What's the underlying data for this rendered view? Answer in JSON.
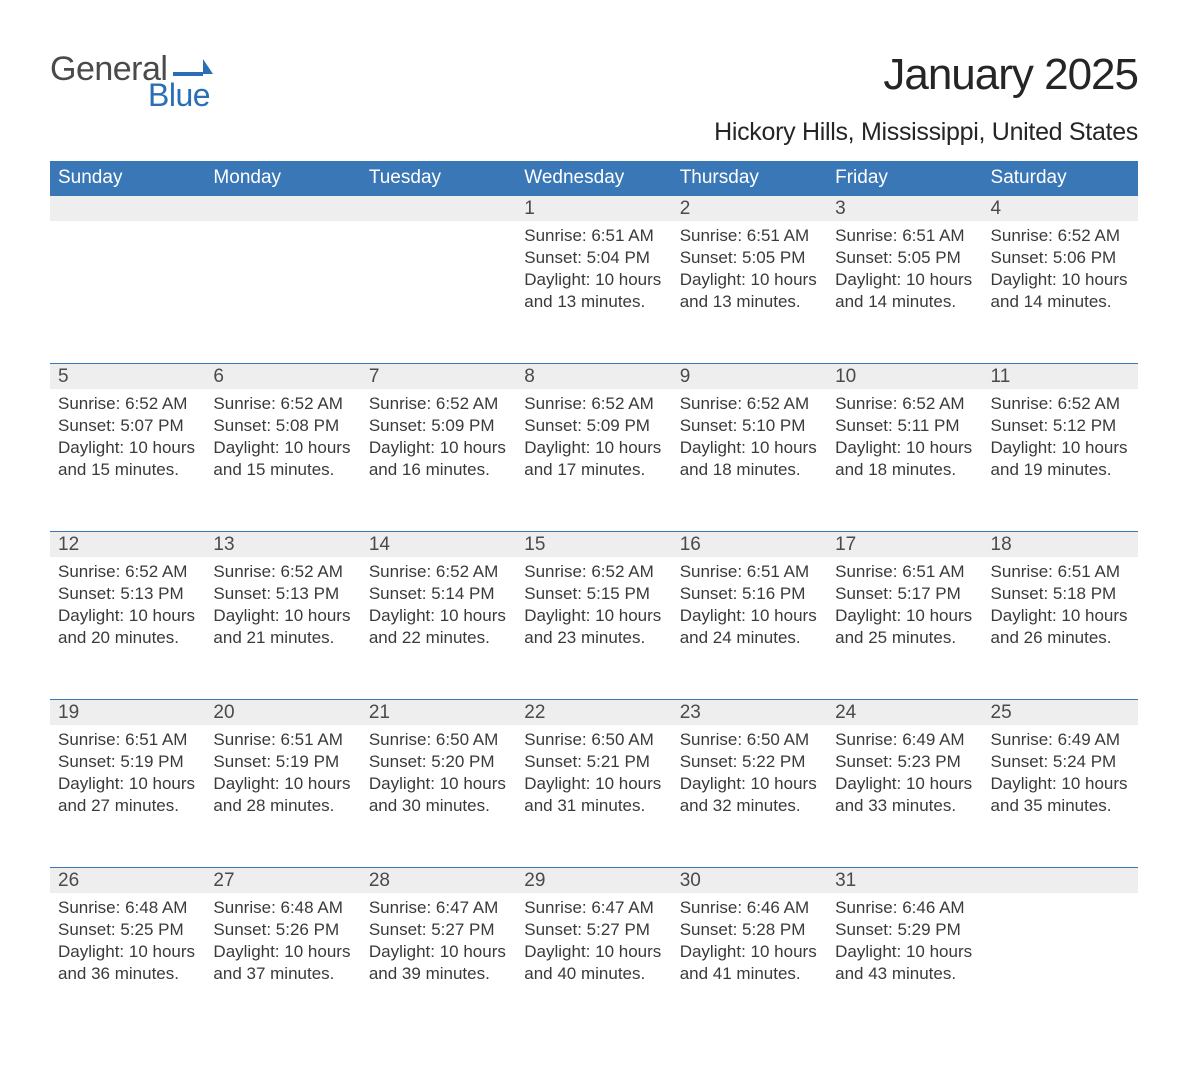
{
  "logo": {
    "text1": "General",
    "text2": "Blue",
    "shape_color": "#2a6fb5"
  },
  "title": "January 2025",
  "location": "Hickory Hills, Mississippi, United States",
  "colors": {
    "header_bg": "#3a77b7",
    "header_text": "#ffffff",
    "daynum_bg": "#eeeeee",
    "border": "#3a77b7",
    "body_text": "#3a3a3a"
  },
  "day_headers": [
    "Sunday",
    "Monday",
    "Tuesday",
    "Wednesday",
    "Thursday",
    "Friday",
    "Saturday"
  ],
  "weeks": [
    [
      null,
      null,
      null,
      {
        "n": "1",
        "sunrise": "6:51 AM",
        "sunset": "5:04 PM",
        "daylight": "10 hours and 13 minutes."
      },
      {
        "n": "2",
        "sunrise": "6:51 AM",
        "sunset": "5:05 PM",
        "daylight": "10 hours and 13 minutes."
      },
      {
        "n": "3",
        "sunrise": "6:51 AM",
        "sunset": "5:05 PM",
        "daylight": "10 hours and 14 minutes."
      },
      {
        "n": "4",
        "sunrise": "6:52 AM",
        "sunset": "5:06 PM",
        "daylight": "10 hours and 14 minutes."
      }
    ],
    [
      {
        "n": "5",
        "sunrise": "6:52 AM",
        "sunset": "5:07 PM",
        "daylight": "10 hours and 15 minutes."
      },
      {
        "n": "6",
        "sunrise": "6:52 AM",
        "sunset": "5:08 PM",
        "daylight": "10 hours and 15 minutes."
      },
      {
        "n": "7",
        "sunrise": "6:52 AM",
        "sunset": "5:09 PM",
        "daylight": "10 hours and 16 minutes."
      },
      {
        "n": "8",
        "sunrise": "6:52 AM",
        "sunset": "5:09 PM",
        "daylight": "10 hours and 17 minutes."
      },
      {
        "n": "9",
        "sunrise": "6:52 AM",
        "sunset": "5:10 PM",
        "daylight": "10 hours and 18 minutes."
      },
      {
        "n": "10",
        "sunrise": "6:52 AM",
        "sunset": "5:11 PM",
        "daylight": "10 hours and 18 minutes."
      },
      {
        "n": "11",
        "sunrise": "6:52 AM",
        "sunset": "5:12 PM",
        "daylight": "10 hours and 19 minutes."
      }
    ],
    [
      {
        "n": "12",
        "sunrise": "6:52 AM",
        "sunset": "5:13 PM",
        "daylight": "10 hours and 20 minutes."
      },
      {
        "n": "13",
        "sunrise": "6:52 AM",
        "sunset": "5:13 PM",
        "daylight": "10 hours and 21 minutes."
      },
      {
        "n": "14",
        "sunrise": "6:52 AM",
        "sunset": "5:14 PM",
        "daylight": "10 hours and 22 minutes."
      },
      {
        "n": "15",
        "sunrise": "6:52 AM",
        "sunset": "5:15 PM",
        "daylight": "10 hours and 23 minutes."
      },
      {
        "n": "16",
        "sunrise": "6:51 AM",
        "sunset": "5:16 PM",
        "daylight": "10 hours and 24 minutes."
      },
      {
        "n": "17",
        "sunrise": "6:51 AM",
        "sunset": "5:17 PM",
        "daylight": "10 hours and 25 minutes."
      },
      {
        "n": "18",
        "sunrise": "6:51 AM",
        "sunset": "5:18 PM",
        "daylight": "10 hours and 26 minutes."
      }
    ],
    [
      {
        "n": "19",
        "sunrise": "6:51 AM",
        "sunset": "5:19 PM",
        "daylight": "10 hours and 27 minutes."
      },
      {
        "n": "20",
        "sunrise": "6:51 AM",
        "sunset": "5:19 PM",
        "daylight": "10 hours and 28 minutes."
      },
      {
        "n": "21",
        "sunrise": "6:50 AM",
        "sunset": "5:20 PM",
        "daylight": "10 hours and 30 minutes."
      },
      {
        "n": "22",
        "sunrise": "6:50 AM",
        "sunset": "5:21 PM",
        "daylight": "10 hours and 31 minutes."
      },
      {
        "n": "23",
        "sunrise": "6:50 AM",
        "sunset": "5:22 PM",
        "daylight": "10 hours and 32 minutes."
      },
      {
        "n": "24",
        "sunrise": "6:49 AM",
        "sunset": "5:23 PM",
        "daylight": "10 hours and 33 minutes."
      },
      {
        "n": "25",
        "sunrise": "6:49 AM",
        "sunset": "5:24 PM",
        "daylight": "10 hours and 35 minutes."
      }
    ],
    [
      {
        "n": "26",
        "sunrise": "6:48 AM",
        "sunset": "5:25 PM",
        "daylight": "10 hours and 36 minutes."
      },
      {
        "n": "27",
        "sunrise": "6:48 AM",
        "sunset": "5:26 PM",
        "daylight": "10 hours and 37 minutes."
      },
      {
        "n": "28",
        "sunrise": "6:47 AM",
        "sunset": "5:27 PM",
        "daylight": "10 hours and 39 minutes."
      },
      {
        "n": "29",
        "sunrise": "6:47 AM",
        "sunset": "5:27 PM",
        "daylight": "10 hours and 40 minutes."
      },
      {
        "n": "30",
        "sunrise": "6:46 AM",
        "sunset": "5:28 PM",
        "daylight": "10 hours and 41 minutes."
      },
      {
        "n": "31",
        "sunrise": "6:46 AM",
        "sunset": "5:29 PM",
        "daylight": "10 hours and 43 minutes."
      },
      null
    ]
  ],
  "labels": {
    "sunrise": "Sunrise: ",
    "sunset": "Sunset: ",
    "daylight": "Daylight: "
  }
}
